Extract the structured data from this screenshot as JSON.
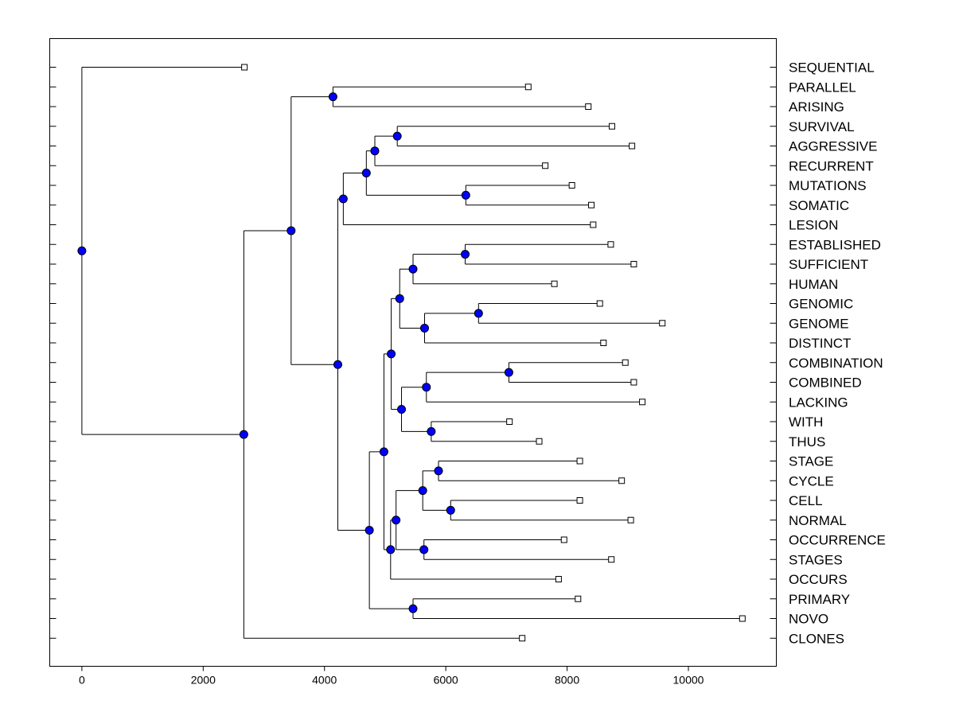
{
  "chart_data": {
    "type": "dendrogram",
    "title": "",
    "xlabel": "",
    "ylabel": "",
    "xlim": [
      -530,
      11450
    ],
    "x_ticks": [
      0,
      2000,
      4000,
      6000,
      8000,
      10000
    ],
    "x_tick_labels": [
      "0",
      "2000",
      "4000",
      "6000",
      "8000",
      "10000"
    ],
    "colors": {
      "node": "#0000FF",
      "line": "#000000",
      "leaf_marker": "#FFFFFF"
    },
    "leaves": [
      {
        "label": "SEQUENTIAL",
        "value": 2680
      },
      {
        "label": "PARALLEL",
        "value": 7360
      },
      {
        "label": "ARISING",
        "value": 8350
      },
      {
        "label": "SURVIVAL",
        "value": 8740
      },
      {
        "label": "AGGRESSIVE",
        "value": 9070
      },
      {
        "label": "RECURRENT",
        "value": 7640
      },
      {
        "label": "MUTATIONS",
        "value": 8080
      },
      {
        "label": "SOMATIC",
        "value": 8400
      },
      {
        "label": "LESION",
        "value": 8430
      },
      {
        "label": "ESTABLISHED",
        "value": 8720
      },
      {
        "label": "SUFFICIENT",
        "value": 9100
      },
      {
        "label": "HUMAN",
        "value": 7790
      },
      {
        "label": "GENOMIC",
        "value": 8540
      },
      {
        "label": "GENOME",
        "value": 9570
      },
      {
        "label": "DISTINCT",
        "value": 8600
      },
      {
        "label": "COMBINATION",
        "value": 8960
      },
      {
        "label": "COMBINED",
        "value": 9100
      },
      {
        "label": "LACKING",
        "value": 9240
      },
      {
        "label": "WITH",
        "value": 7050
      },
      {
        "label": "THUS",
        "value": 7540
      },
      {
        "label": "STAGE",
        "value": 8210
      },
      {
        "label": "CYCLE",
        "value": 8900
      },
      {
        "label": "CELL",
        "value": 8210
      },
      {
        "label": "NORMAL",
        "value": 9050
      },
      {
        "label": "OCCURRENCE",
        "value": 7950
      },
      {
        "label": "STAGES",
        "value": 8730
      },
      {
        "label": "OCCURS",
        "value": 7860
      },
      {
        "label": "PRIMARY",
        "value": 8180
      },
      {
        "label": "NOVO",
        "value": 10890
      },
      {
        "label": "CLONES",
        "value": 7260
      }
    ],
    "merges": [
      {
        "id": "n1",
        "value": 4140,
        "children": [
          "PARALLEL",
          "ARISING"
        ]
      },
      {
        "id": "n2",
        "value": 5200,
        "children": [
          "SURVIVAL",
          "AGGRESSIVE"
        ]
      },
      {
        "id": "n3",
        "value": 4830,
        "children": [
          "n2",
          "RECURRENT"
        ]
      },
      {
        "id": "n4",
        "value": 6330,
        "children": [
          "MUTATIONS",
          "SOMATIC"
        ]
      },
      {
        "id": "n5",
        "value": 4690,
        "children": [
          "n3",
          "n4"
        ]
      },
      {
        "id": "n6",
        "value": 4310,
        "children": [
          "n5",
          "LESION"
        ]
      },
      {
        "id": "n7",
        "value": 6320,
        "children": [
          "ESTABLISHED",
          "SUFFICIENT"
        ]
      },
      {
        "id": "n8",
        "value": 5460,
        "children": [
          "n7",
          "HUMAN"
        ]
      },
      {
        "id": "n9",
        "value": 6540,
        "children": [
          "GENOMIC",
          "GENOME"
        ]
      },
      {
        "id": "n10",
        "value": 5650,
        "children": [
          "n9",
          "DISTINCT"
        ]
      },
      {
        "id": "n11",
        "value": 5240,
        "children": [
          "n8",
          "n10"
        ]
      },
      {
        "id": "n12",
        "value": 7040,
        "children": [
          "COMBINATION",
          "COMBINED"
        ]
      },
      {
        "id": "n13",
        "value": 5680,
        "children": [
          "n12",
          "LACKING"
        ]
      },
      {
        "id": "n14",
        "value": 5760,
        "children": [
          "WITH",
          "THUS"
        ]
      },
      {
        "id": "n15",
        "value": 5270,
        "children": [
          "n13",
          "n14"
        ]
      },
      {
        "id": "n16",
        "value": 5100,
        "children": [
          "n11",
          "n15"
        ]
      },
      {
        "id": "n17",
        "value": 5880,
        "children": [
          "STAGE",
          "CYCLE"
        ]
      },
      {
        "id": "n18",
        "value": 6080,
        "children": [
          "CELL",
          "NORMAL"
        ]
      },
      {
        "id": "n19",
        "value": 5620,
        "children": [
          "n17",
          "n18"
        ]
      },
      {
        "id": "n20",
        "value": 5640,
        "children": [
          "OCCURRENCE",
          "STAGES"
        ]
      },
      {
        "id": "n21",
        "value": 5180,
        "children": [
          "n19",
          "n20"
        ]
      },
      {
        "id": "n22",
        "value": 5090,
        "children": [
          "n21",
          "OCCURS"
        ]
      },
      {
        "id": "n23",
        "value": 4980,
        "children": [
          "n16",
          "n22"
        ]
      },
      {
        "id": "n24",
        "value": 5460,
        "children": [
          "PRIMARY",
          "NOVO"
        ]
      },
      {
        "id": "n25",
        "value": 4740,
        "children": [
          "n23",
          "n24"
        ]
      },
      {
        "id": "n26",
        "value": 4220,
        "children": [
          "n6",
          "n25"
        ]
      },
      {
        "id": "n27",
        "value": 3450,
        "children": [
          "n1",
          "n26"
        ]
      },
      {
        "id": "n28",
        "value": 2670,
        "children": [
          "n27",
          "CLONES"
        ]
      },
      {
        "id": "n29",
        "value": 0,
        "children": [
          "SEQUENTIAL",
          "n28"
        ]
      }
    ]
  }
}
